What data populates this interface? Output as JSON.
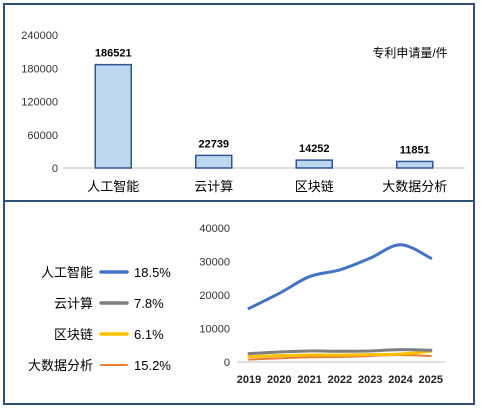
{
  "chart_data": [
    {
      "type": "bar",
      "categories": [
        "人工智能",
        "云计算",
        "区块链",
        "大数据分析"
      ],
      "values": [
        186521,
        22739,
        14252,
        11851
      ],
      "value_labels": [
        "186521",
        "22739",
        "14252",
        "11851"
      ],
      "title": "",
      "annotation": "专利申请量/件",
      "xlabel": "",
      "ylabel": "",
      "ylim": [
        0,
        240000
      ],
      "yticks": [
        "240000",
        "180000",
        "120000",
        "60000",
        "0"
      ],
      "grid": false,
      "colors": {
        "bar_fill": "#bdd7ee",
        "bar_stroke": "#2f5597"
      }
    },
    {
      "type": "line",
      "x": [
        "2019",
        "2020",
        "2021",
        "2022",
        "2023",
        "2024",
        "2025"
      ],
      "series": [
        {
          "name": "人工智能",
          "rate": "18.5%",
          "color": "#4472c4",
          "values": [
            16000,
            20500,
            25500,
            27500,
            31000,
            35000,
            31000
          ]
        },
        {
          "name": "云计算",
          "rate": "7.8%",
          "color": "#7f7f7f",
          "values": [
            2500,
            3000,
            3300,
            3200,
            3300,
            3700,
            3500
          ]
        },
        {
          "name": "区块链",
          "rate": "6.1%",
          "color": "#ffc000",
          "values": [
            1600,
            1900,
            2100,
            2100,
            2200,
            2400,
            3200
          ]
        },
        {
          "name": "大数据分析",
          "rate": "15.2%",
          "color": "#ed7d31",
          "values": [
            700,
            1100,
            1400,
            1500,
            1800,
            2100,
            1800
          ]
        }
      ],
      "title": "",
      "xlabel": "",
      "ylabel": "",
      "ylim": [
        0,
        40000
      ],
      "yticks": [
        "40000",
        "30000",
        "20000",
        "10000",
        "0"
      ],
      "grid": false,
      "legend": "left"
    }
  ]
}
